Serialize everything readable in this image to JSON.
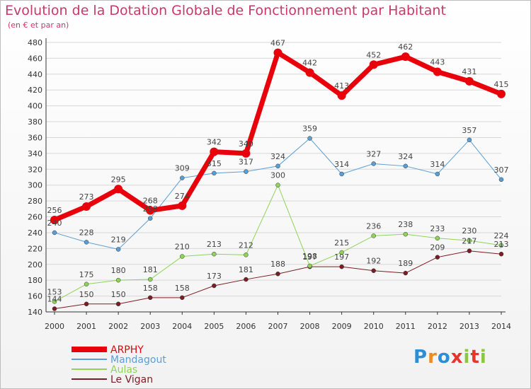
{
  "title": "Evolution de la Dotation Globale de Fonctionnement par Habitant",
  "subtitle": "(en € et par an)",
  "logo": {
    "text": "Proxiti",
    "colors": [
      "#2b8fd6",
      "#f08a1c",
      "#2b8fd6",
      "#e8342c",
      "#8cc63f",
      "#e8342c",
      "#8cc63f"
    ]
  },
  "colors": {
    "title": "#c8386a",
    "axis": "#333333",
    "grid": "#d7d7d7"
  },
  "chart_data": {
    "type": "line",
    "title": "Evolution de la Dotation Globale de Fonctionnement par Habitant",
    "subtitle": "(en € et par an)",
    "x": [
      "2000",
      "2001",
      "2002",
      "2003",
      "2004",
      "2005",
      "2006",
      "2007",
      "2008",
      "2009",
      "2010",
      "2011",
      "2012",
      "2013",
      "2014"
    ],
    "yticks": [
      140,
      160,
      180,
      200,
      220,
      240,
      260,
      280,
      300,
      320,
      340,
      360,
      380,
      400,
      420,
      440,
      460,
      480
    ],
    "ylim": [
      140,
      480
    ],
    "grid": true,
    "legend_position": "bottom-left",
    "series": [
      {
        "name": "ARPHY",
        "color": "#e8000b",
        "width": 7,
        "values": [
          256,
          273,
          295,
          268,
          274,
          342,
          340,
          467,
          442,
          413,
          452,
          462,
          443,
          431,
          415
        ],
        "labels": [
          "256",
          "273",
          "295",
          "268",
          "274",
          "342",
          "340",
          "467",
          "442",
          "413",
          "452",
          "462",
          "443",
          "431",
          "415"
        ]
      },
      {
        "name": "Mandagout",
        "color": "#5a9ed6",
        "width": 1,
        "values": [
          240,
          228,
          219,
          258,
          309,
          315,
          317,
          324,
          359,
          314,
          327,
          324,
          314,
          357,
          307
        ],
        "labels": [
          "240",
          "228",
          "219",
          "258",
          "309",
          "315",
          "317",
          "324",
          "359",
          "314",
          "327",
          "324",
          "314",
          "357",
          "307"
        ]
      },
      {
        "name": "Aulas",
        "color": "#8fd35a",
        "width": 1,
        "values": [
          153,
          175,
          180,
          181,
          210,
          213,
          212,
          300,
          198,
          215,
          236,
          238,
          233,
          230,
          224
        ],
        "labels": [
          "153",
          "175",
          "180",
          "181",
          "210",
          "213",
          "212",
          "300",
          "198",
          "215",
          "236",
          "238",
          "233",
          "230",
          "224"
        ]
      },
      {
        "name": "Le Vigan",
        "color": "#7a1e23",
        "width": 1,
        "values": [
          144,
          150,
          150,
          158,
          158,
          173,
          181,
          188,
          197,
          197,
          192,
          189,
          209,
          217,
          213
        ],
        "labels": [
          "144",
          "150",
          "150",
          "158",
          "158",
          "173",
          "181",
          "188",
          "197",
          "197",
          "192",
          "189",
          "209",
          "217",
          "213"
        ]
      }
    ]
  }
}
